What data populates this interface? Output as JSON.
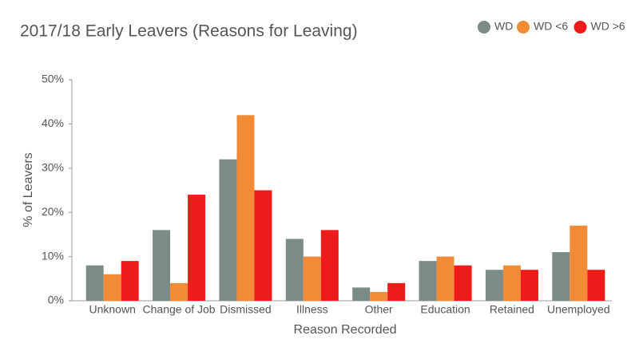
{
  "chart_data": {
    "type": "bar",
    "title": "2017/18 Early Leavers (Reasons for Leaving)",
    "x_label": "Reason Recorded",
    "y_label": "% of Leavers",
    "categories": [
      "Unknown",
      "Change of Job",
      "Dismissed",
      "Illness",
      "Other",
      "Education",
      "Retained",
      "Unemployed"
    ],
    "series": [
      {
        "name": "WD",
        "color": "#7b8b88",
        "values": [
          8,
          16,
          32,
          14,
          3,
          9,
          7,
          11
        ]
      },
      {
        "name": "WD <6",
        "color": "#f28b35",
        "values": [
          6,
          4,
          42,
          10,
          2,
          10,
          8,
          17
        ]
      },
      {
        "name": "WD >6",
        "color": "#ee1b1b",
        "values": [
          9,
          24,
          25,
          16,
          4,
          8,
          7,
          7
        ]
      }
    ],
    "ylim": [
      0,
      50
    ],
    "yticks": [
      {
        "value": 0,
        "label": "0%"
      },
      {
        "value": 10,
        "label": "10%"
      },
      {
        "value": 20,
        "label": "20%"
      },
      {
        "value": 30,
        "label": "30%"
      },
      {
        "value": 40,
        "label": "40%"
      },
      {
        "value": 50,
        "label": "50%"
      }
    ],
    "legend": "top-right",
    "grid": false
  }
}
